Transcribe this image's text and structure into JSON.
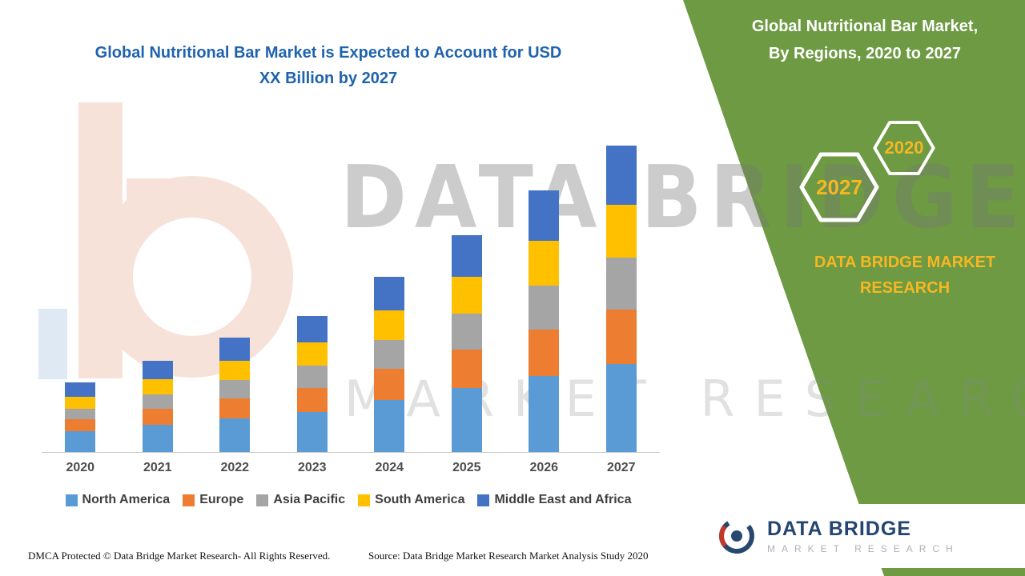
{
  "chart_title": {
    "line1": "Global Nutritional Bar Market is Expected to Account for USD",
    "line2": "XX Billion by 2027"
  },
  "panel": {
    "title_line1": "Global Nutritional Bar Market,",
    "title_line2": "By Regions, 2020 to 2027",
    "hexagons": [
      {
        "label": "2027"
      },
      {
        "label": "2020"
      }
    ],
    "brand_line1": "DATA BRIDGE MARKET",
    "brand_line2": "RESEARCH",
    "colors": {
      "panel_green": "#6d9a42",
      "accent_gold": "#f6b723"
    }
  },
  "watermark": {
    "line1": "DATA BRIDGE",
    "line2": "MARKET RESEARCH"
  },
  "chart_data": {
    "type": "bar",
    "stacked": true,
    "title": "Global Nutritional Bar Market is Expected to Account for USD XX Billion by 2027",
    "xlabel": "",
    "ylabel": "",
    "ylim": [
      0,
      40
    ],
    "grid": false,
    "legend_position": "bottom",
    "value_unit": "USD Billion (values not labeled on chart, estimated from bar heights)",
    "categories": [
      "2020",
      "2021",
      "2022",
      "2023",
      "2024",
      "2025",
      "2026",
      "2027"
    ],
    "series": [
      {
        "name": "North America",
        "color": "#5B9BD5",
        "values": [
          2.6,
          3.4,
          4.2,
          5.0,
          6.5,
          8.0,
          9.5,
          11.0
        ]
      },
      {
        "name": "Europe",
        "color": "#ED7D31",
        "values": [
          1.5,
          2.0,
          2.5,
          3.0,
          3.9,
          4.8,
          5.8,
          6.8
        ]
      },
      {
        "name": "Asia Pacific",
        "color": "#A5A5A5",
        "values": [
          1.3,
          1.8,
          2.3,
          2.8,
          3.6,
          4.5,
          5.5,
          6.5
        ]
      },
      {
        "name": "South America",
        "color": "#FFC000",
        "values": [
          1.5,
          1.9,
          2.4,
          2.9,
          3.7,
          4.6,
          5.6,
          6.6
        ]
      },
      {
        "name": "Middle East and Africa",
        "color": "#4472C4",
        "values": [
          1.8,
          2.3,
          2.9,
          3.3,
          4.2,
          5.2,
          6.3,
          7.4
        ]
      }
    ]
  },
  "footer": {
    "dmca": "DMCA Protected © Data Bridge Market Research- All Rights Reserved.",
    "source": "Source: Data Bridge Market Research Market Analysis Study 2020"
  },
  "logo": {
    "name": "DATA BRIDGE",
    "subtitle": "MARKET RESEARCH"
  }
}
